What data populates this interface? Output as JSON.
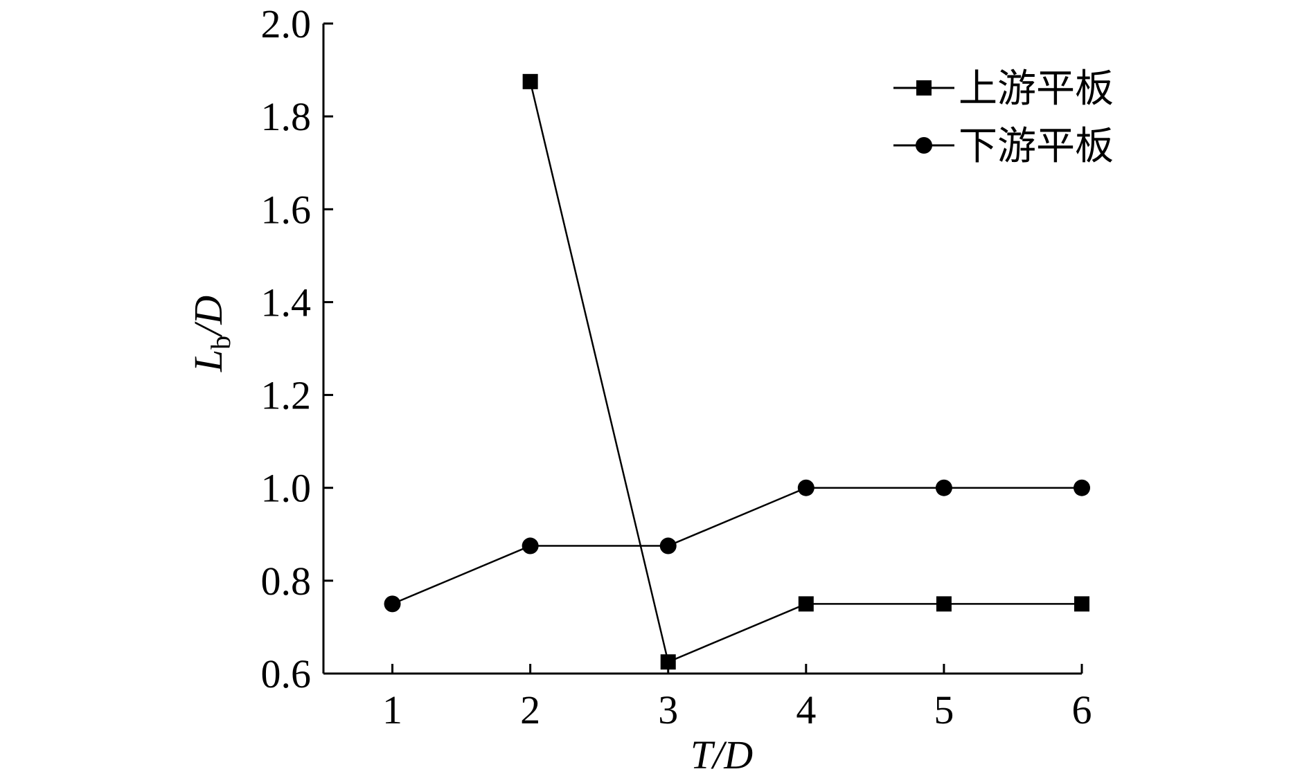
{
  "chart_data": {
    "type": "line",
    "title": "",
    "xlabel": "T/D",
    "ylabel": {
      "main": "L",
      "sub": "b",
      "rest": "/D"
    },
    "x": [
      1,
      2,
      3,
      4,
      5,
      6
    ],
    "xlim": [
      0.5,
      6
    ],
    "ylim": [
      0.6,
      2.0
    ],
    "xticks": [
      "1",
      "2",
      "3",
      "4",
      "5",
      "6"
    ],
    "yticks": [
      "0.6",
      "0.8",
      "1.0",
      "1.2",
      "1.4",
      "1.6",
      "1.8",
      "2.0"
    ],
    "grid": false,
    "legend_position": "top-right",
    "series": [
      {
        "name": "上游平板",
        "marker": "square",
        "color": "#000000",
        "points": [
          [
            2,
            1.875
          ],
          [
            3,
            0.625
          ],
          [
            4,
            0.75
          ],
          [
            5,
            0.75
          ],
          [
            6,
            0.75
          ]
        ]
      },
      {
        "name": "下游平板",
        "marker": "circle",
        "color": "#000000",
        "points": [
          [
            1,
            0.75
          ],
          [
            2,
            0.875
          ],
          [
            3,
            0.875
          ],
          [
            4,
            1.0
          ],
          [
            5,
            1.0
          ],
          [
            6,
            1.0
          ]
        ]
      }
    ]
  }
}
